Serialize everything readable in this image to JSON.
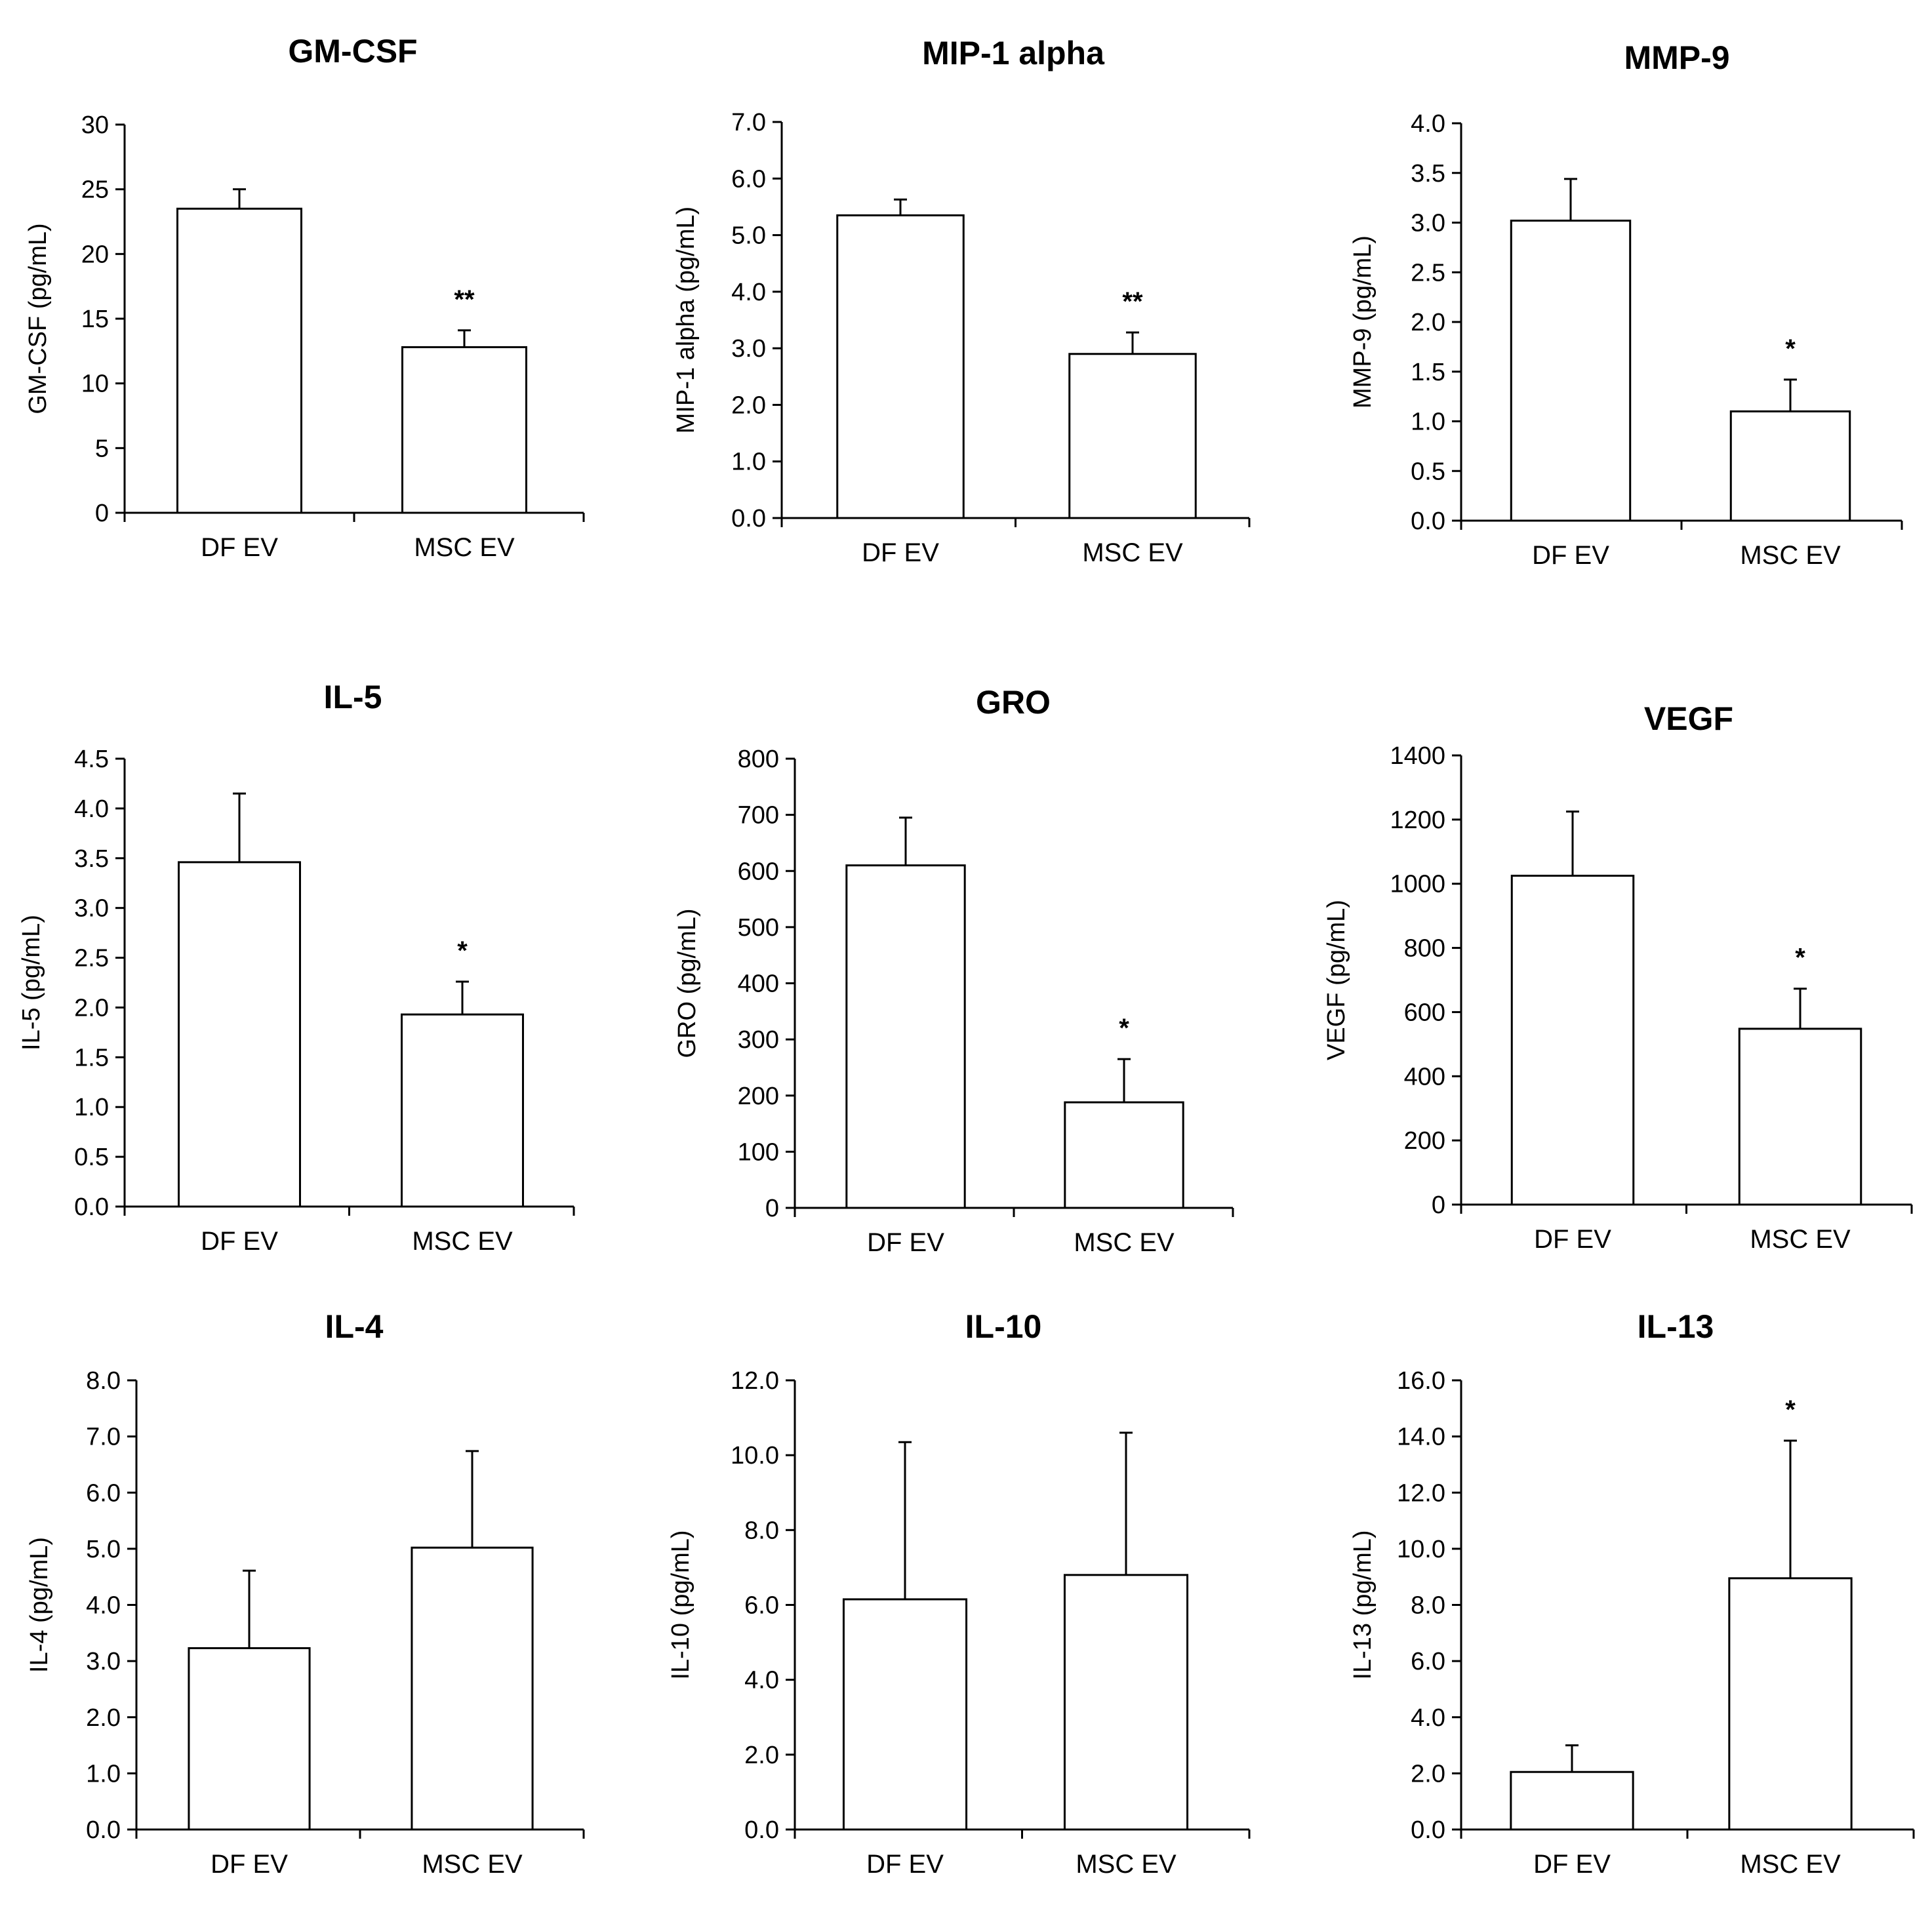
{
  "chart_data": [
    {
      "type": "bar",
      "title": "GM-CSF",
      "ylabel": "GM-CSF (pg/mL)",
      "categories": [
        "DF EV",
        "MSC EV"
      ],
      "values": [
        23.5,
        12.8
      ],
      "errors": [
        1.5,
        1.3
      ],
      "significance": [
        "",
        "**"
      ],
      "ylim": [
        0,
        30
      ],
      "yticks": [
        "0",
        "5",
        "10",
        "15",
        "20",
        "25",
        "30"
      ]
    },
    {
      "type": "bar",
      "title": "MIP-1 alpha",
      "ylabel": "MIP-1 alpha (pg/mL)",
      "categories": [
        "DF EV",
        "MSC EV"
      ],
      "values": [
        5.35,
        2.9
      ],
      "errors": [
        0.28,
        0.38
      ],
      "significance": [
        "",
        "**"
      ],
      "ylim": [
        0,
        7
      ],
      "yticks": [
        "0.0",
        "1.0",
        "2.0",
        "3.0",
        "4.0",
        "5.0",
        "6.0",
        "7.0"
      ]
    },
    {
      "type": "bar",
      "title": "MMP-9",
      "ylabel": "MMP-9 (pg/mL)",
      "categories": [
        "DF EV",
        "MSC EV"
      ],
      "values": [
        3.02,
        1.1
      ],
      "errors": [
        0.42,
        0.32
      ],
      "significance": [
        "",
        "*"
      ],
      "ylim": [
        0,
        4
      ],
      "yticks": [
        "0.0",
        "0.5",
        "1.0",
        "1.5",
        "2.0",
        "2.5",
        "3.0",
        "3.5",
        "4.0"
      ]
    },
    {
      "type": "bar",
      "title": "IL-5",
      "ylabel": "IL-5 (pg/mL)",
      "categories": [
        "DF EV",
        "MSC EV"
      ],
      "values": [
        3.46,
        1.93
      ],
      "errors": [
        0.69,
        0.33
      ],
      "significance": [
        "",
        "*"
      ],
      "ylim": [
        0,
        4.5
      ],
      "yticks": [
        "0.0",
        "0.5",
        "1.0",
        "1.5",
        "2.0",
        "2.5",
        "3.0",
        "3.5",
        "4.0",
        "4.5"
      ]
    },
    {
      "type": "bar",
      "title": "GRO",
      "ylabel": "GRO (pg/mL)",
      "categories": [
        "DF EV",
        "MSC EV"
      ],
      "values": [
        610,
        188
      ],
      "errors": [
        85,
        77
      ],
      "significance": [
        "",
        "*"
      ],
      "ylim": [
        0,
        800
      ],
      "yticks": [
        "0",
        "100",
        "200",
        "300",
        "400",
        "500",
        "600",
        "700",
        "800"
      ]
    },
    {
      "type": "bar",
      "title": "VEGF",
      "ylabel": "VEGF (pg/mL)",
      "categories": [
        "DF EV",
        "MSC EV"
      ],
      "values": [
        1025,
        548
      ],
      "errors": [
        200,
        125
      ],
      "significance": [
        "",
        "*"
      ],
      "ylim": [
        0,
        1400
      ],
      "yticks": [
        "0",
        "200",
        "400",
        "600",
        "800",
        "1000",
        "1200",
        "1400"
      ]
    },
    {
      "type": "bar",
      "title": "IL-4",
      "ylabel": "IL-4 (pg/mL)",
      "categories": [
        "DF EV",
        "MSC EV"
      ],
      "values": [
        3.23,
        5.02
      ],
      "errors": [
        1.38,
        1.72
      ],
      "significance": [
        "",
        ""
      ],
      "ylim": [
        0,
        8
      ],
      "yticks": [
        "0.0",
        "1.0",
        "2.0",
        "3.0",
        "4.0",
        "5.0",
        "6.0",
        "7.0",
        "8.0"
      ]
    },
    {
      "type": "bar",
      "title": "IL-10",
      "ylabel": "IL-10 (pg/mL)",
      "categories": [
        "DF EV",
        "MSC EV"
      ],
      "values": [
        6.15,
        6.8
      ],
      "errors": [
        4.2,
        3.8
      ],
      "significance": [
        "",
        ""
      ],
      "ylim": [
        0,
        12
      ],
      "yticks": [
        "0.0",
        "2.0",
        "4.0",
        "6.0",
        "8.0",
        "10.0",
        "12.0"
      ]
    },
    {
      "type": "bar",
      "title": "IL-13",
      "ylabel": "IL-13 (pg/mL)",
      "categories": [
        "DF EV",
        "MSC EV"
      ],
      "values": [
        2.05,
        8.95
      ],
      "errors": [
        0.95,
        4.9
      ],
      "significance": [
        "",
        "*"
      ],
      "ylim": [
        0,
        16
      ],
      "yticks": [
        "0.0",
        "2.0",
        "4.0",
        "6.0",
        "8.0",
        "10.0",
        "12.0",
        "14.0",
        "16.0"
      ]
    }
  ]
}
